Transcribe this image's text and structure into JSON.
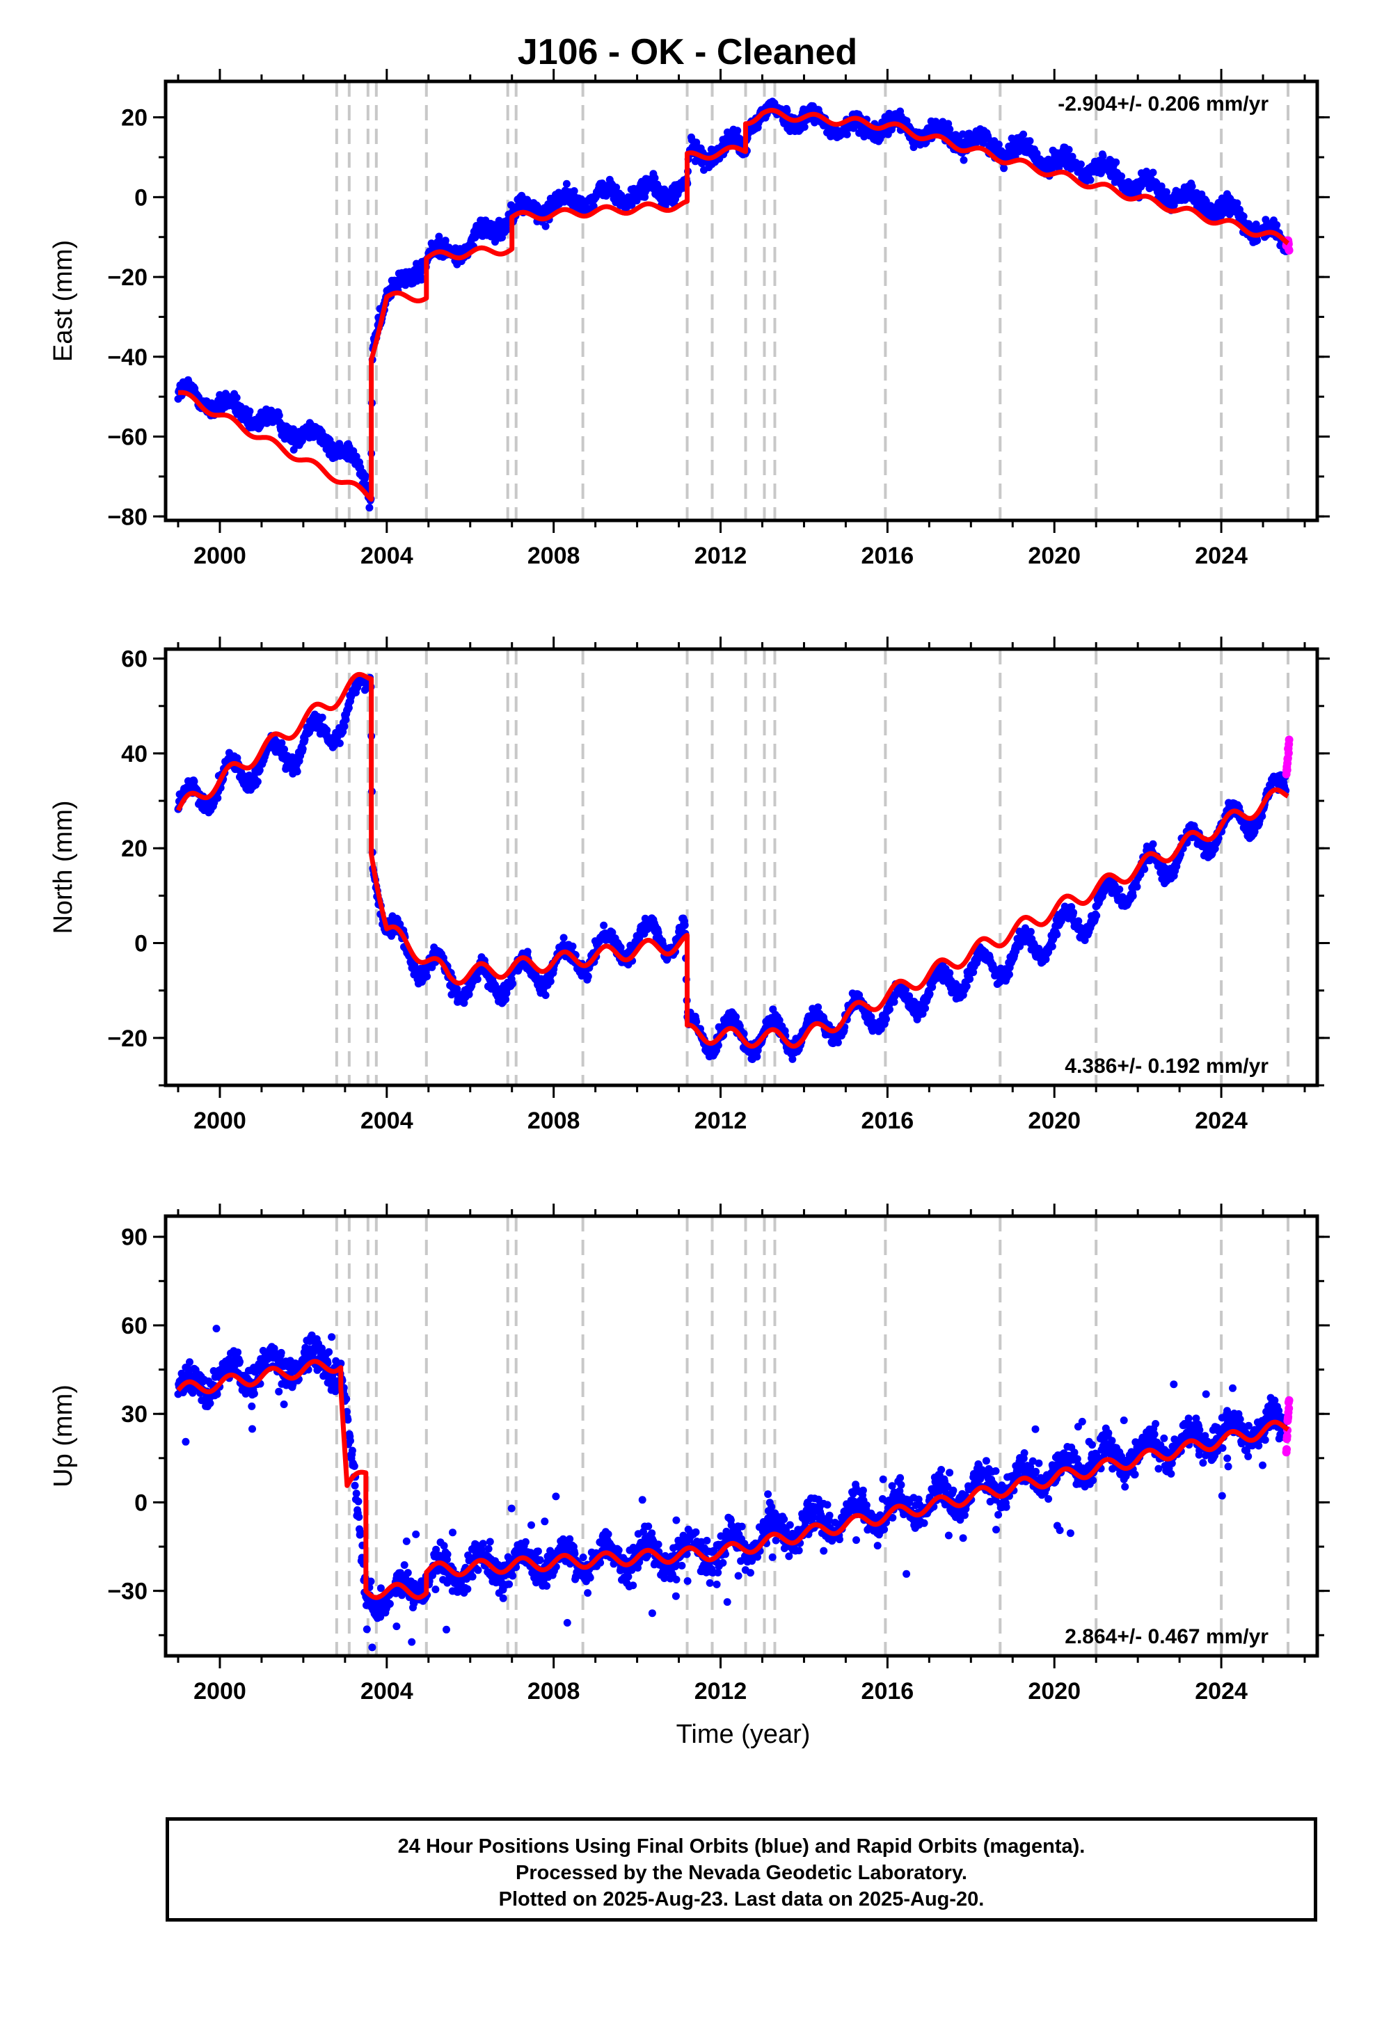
{
  "title": "J106  - OK - Cleaned",
  "xlabel": "Time (year)",
  "footer": {
    "line1": "24 Hour Positions Using Final Orbits (blue) and Rapid Orbits (magenta).",
    "line2": "Processed by the Nevada Geodetic Laboratory.",
    "line3": "Plotted on 2025-Aug-23. Last data on 2025-Aug-20."
  },
  "colors": {
    "final": "#0000ff",
    "rapid": "#ff00ff",
    "model": "#ff0000",
    "breaks": "#c8c8c8"
  },
  "chart_data": [
    {
      "type": "scatter",
      "ylabel": "East (mm)",
      "xlim": [
        1998.7,
        2026.3
      ],
      "ylim": [
        -81,
        29
      ],
      "yticks": [
        -80,
        -60,
        -40,
        -20,
        0,
        20
      ],
      "xticks": [
        2000,
        2004,
        2008,
        2012,
        2016,
        2020,
        2024
      ],
      "rate_label": "-2.904+/- 0.206 mm/yr",
      "rate_position": "top-right",
      "breaks": [
        2002.8,
        2003.1,
        2003.55,
        2003.75,
        2004.95,
        2006.9,
        2007.1,
        2008.7,
        2011.2,
        2011.8,
        2012.6,
        2013.05,
        2013.3,
        2015.95,
        2018.7,
        2021.0,
        2024.0,
        2025.6
      ],
      "series": [
        {
          "name": "Final Orbits (blue)",
          "x": [
            1999.0,
            2000.0,
            2001.0,
            2002.0,
            2003.0,
            2003.62,
            2003.66,
            2004.0,
            2005.0,
            2006.0,
            2007.0,
            2008.0,
            2009.0,
            2010.0,
            2011.0,
            2011.2,
            2011.25,
            2012.0,
            2012.6,
            2012.7,
            2013.0,
            2014.0,
            2015.0,
            2016.0,
            2017.0,
            2018.0,
            2019.0,
            2020.0,
            2021.0,
            2022.0,
            2023.0,
            2024.0,
            2025.0,
            2025.55
          ],
          "y": [
            -49,
            -52,
            -56,
            -59,
            -63,
            -75,
            -35,
            -25,
            -15,
            -12,
            -4,
            -2,
            0,
            1,
            2,
            2,
            10,
            12,
            13,
            19,
            21,
            20,
            17,
            18,
            16,
            14,
            12,
            9,
            7,
            3,
            0,
            -3,
            -8,
            -13
          ],
          "scatter_mm": 4
        },
        {
          "name": "Rapid Orbits (magenta)",
          "x": [
            2025.56,
            2025.6,
            2025.63
          ],
          "y": [
            -12,
            -10,
            -14
          ],
          "scatter_mm": 2
        }
      ],
      "model": {
        "knots": [
          [
            1999.0,
            -49
          ],
          [
            2003.63,
            -75
          ],
          [
            2003.63,
            -40
          ],
          [
            2004.0,
            -25
          ],
          [
            2004.95,
            -25
          ],
          [
            2004.95,
            -15
          ],
          [
            2007.0,
            -13
          ],
          [
            2007.0,
            -5
          ],
          [
            2011.2,
            -2
          ],
          [
            2011.2,
            10
          ],
          [
            2012.6,
            12
          ],
          [
            2012.6,
            19
          ],
          [
            2013.0,
            21
          ],
          [
            2016.0,
            18
          ],
          [
            2025.6,
            -11
          ]
        ],
        "annual_amplitude_mm": 2.0
      }
    },
    {
      "type": "scatter",
      "ylabel": "North (mm)",
      "xlim": [
        1998.7,
        2026.3
      ],
      "ylim": [
        -30,
        62
      ],
      "yticks": [
        -20,
        0,
        20,
        40,
        60
      ],
      "xticks": [
        2000,
        2004,
        2008,
        2012,
        2016,
        2020,
        2024
      ],
      "rate_label": "4.386+/- 0.192 mm/yr",
      "rate_position": "bottom-right",
      "breaks": [
        2002.8,
        2003.1,
        2003.55,
        2003.75,
        2004.95,
        2006.9,
        2007.1,
        2008.7,
        2011.2,
        2011.8,
        2012.6,
        2013.05,
        2013.3,
        2015.95,
        2018.7,
        2021.0,
        2024.0,
        2025.6
      ],
      "series": [
        {
          "name": "Final Orbits (blue)",
          "x": [
            1999.0,
            2000.0,
            2001.0,
            2002.0,
            2003.0,
            2003.62,
            2003.66,
            2004.0,
            2005.0,
            2006.0,
            2007.0,
            2008.0,
            2009.0,
            2010.0,
            2011.15,
            2011.2,
            2012.0,
            2013.0,
            2014.0,
            2015.0,
            2016.0,
            2017.0,
            2018.0,
            2019.0,
            2020.0,
            2021.0,
            2022.0,
            2023.0,
            2024.0,
            2025.0,
            2025.55
          ],
          "y": [
            28,
            34,
            38,
            42,
            47,
            57,
            20,
            2,
            -5,
            -9,
            -7,
            -5,
            -2,
            1,
            2,
            -19,
            -19,
            -20,
            -19,
            -16,
            -14,
            -10,
            -6,
            -3,
            2,
            7,
            14,
            19,
            24,
            28,
            34
          ],
          "scatter_mm": 3
        },
        {
          "name": "Rapid Orbits (magenta)",
          "x": [
            2025.56,
            2025.6,
            2025.63
          ],
          "y": [
            36,
            40,
            43
          ],
          "scatter_mm": 2
        }
      ],
      "model": {
        "knots": [
          [
            1999.0,
            28
          ],
          [
            2003.63,
            57
          ],
          [
            2003.63,
            20
          ],
          [
            2004.0,
            3
          ],
          [
            2005.5,
            -7
          ],
          [
            2011.2,
            0
          ],
          [
            2011.2,
            -19
          ],
          [
            2012.6,
            -20
          ],
          [
            2014.0,
            -20
          ],
          [
            2025.6,
            32
          ]
        ],
        "annual_amplitude_mm": 3.5
      }
    },
    {
      "type": "scatter",
      "ylabel": "Up (mm)",
      "xlim": [
        1998.7,
        2026.3
      ],
      "ylim": [
        -52,
        97
      ],
      "yticks": [
        -30,
        0,
        30,
        60,
        90
      ],
      "xticks": [
        2000,
        2004,
        2008,
        2012,
        2016,
        2020,
        2024
      ],
      "rate_label": "2.864+/- 0.467 mm/yr",
      "rate_position": "bottom-right",
      "breaks": [
        2002.8,
        2003.1,
        2003.55,
        2003.75,
        2004.95,
        2006.9,
        2007.1,
        2008.7,
        2011.2,
        2011.8,
        2012.6,
        2013.05,
        2013.3,
        2015.95,
        2018.7,
        2021.0,
        2024.0,
        2025.6
      ],
      "series": [
        {
          "name": "Final Orbits (blue)",
          "x": [
            1999.0,
            2000.0,
            2001.0,
            2002.0,
            2002.9,
            2003.5,
            2004.0,
            2005.0,
            2006.0,
            2007.0,
            2008.0,
            2009.0,
            2010.0,
            2011.0,
            2012.0,
            2013.0,
            2014.0,
            2015.0,
            2016.0,
            2017.0,
            2018.0,
            2019.0,
            2020.0,
            2021.0,
            2022.0,
            2023.0,
            2024.0,
            2025.0,
            2025.55
          ],
          "y": [
            38,
            42,
            45,
            48,
            46,
            -30,
            -33,
            -26,
            -22,
            -21,
            -20,
            -19,
            -18,
            -18,
            -16,
            -12,
            -8,
            -5,
            -3,
            0,
            4,
            7,
            10,
            14,
            17,
            20,
            23,
            26,
            25
          ],
          "scatter_mm": 9
        },
        {
          "name": "Rapid Orbits (magenta)",
          "x": [
            2025.56,
            2025.6,
            2025.63
          ],
          "y": [
            18,
            28,
            36
          ],
          "scatter_mm": 5
        }
      ],
      "model": {
        "knots": [
          [
            1999.0,
            38
          ],
          [
            2002.9,
            47
          ],
          [
            2002.9,
            40
          ],
          [
            2003.05,
            5
          ],
          [
            2003.5,
            10
          ],
          [
            2003.5,
            -30
          ],
          [
            2004.95,
            -30
          ],
          [
            2004.95,
            -23
          ],
          [
            2012.0,
            -17
          ],
          [
            2025.6,
            26
          ]
        ],
        "annual_amplitude_mm": 4.5
      }
    }
  ]
}
